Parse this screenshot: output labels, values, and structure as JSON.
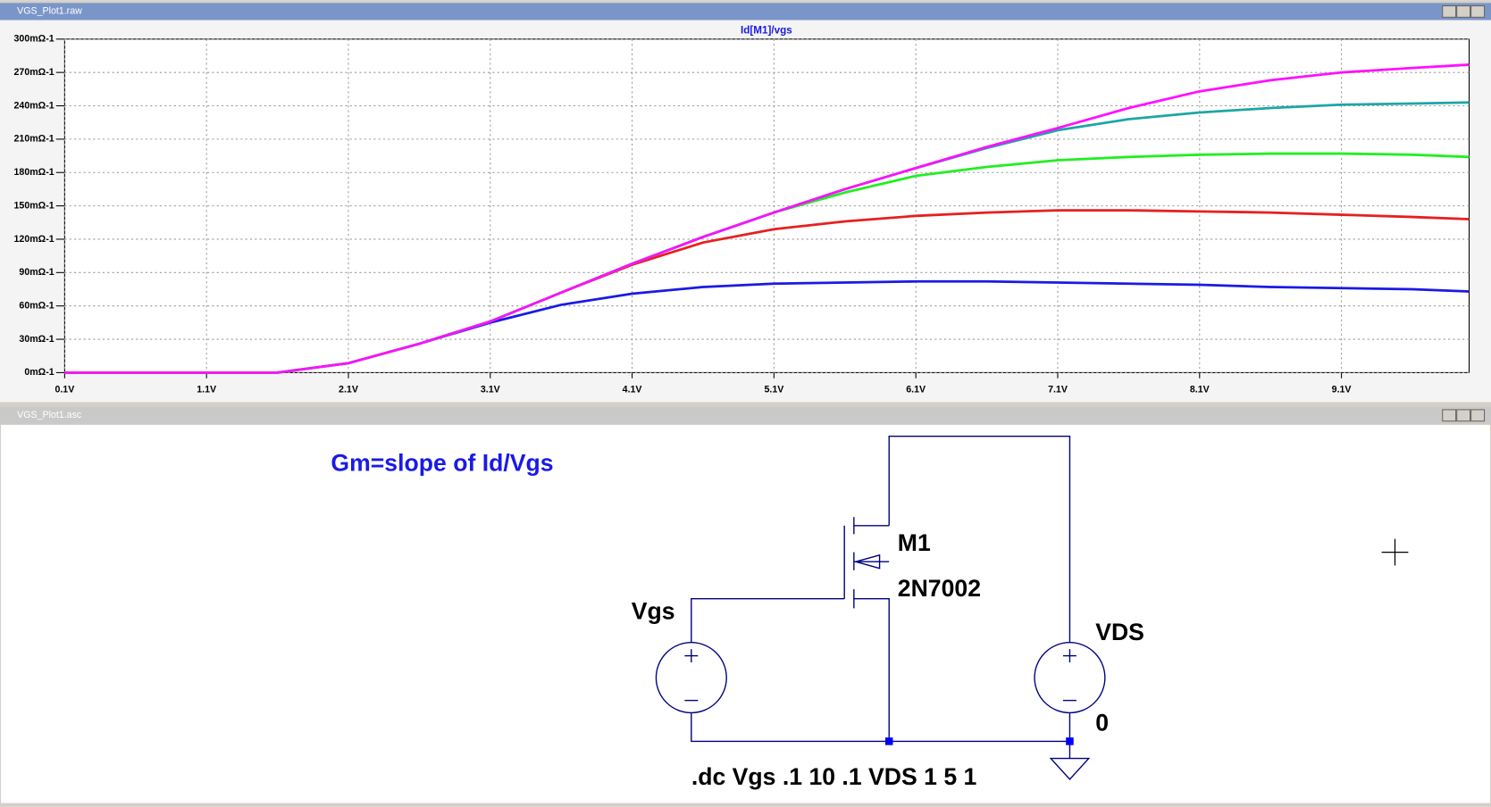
{
  "plot_window": {
    "title": "VGS_Plot1.raw"
  },
  "chart_data": {
    "type": "line",
    "title": "Id[M1]/vgs",
    "x": [
      0.1,
      0.6,
      1.1,
      1.6,
      2.1,
      2.6,
      3.1,
      3.6,
      4.1,
      4.6,
      5.1,
      5.6,
      6.1,
      6.6,
      7.1,
      7.6,
      8.1,
      8.6,
      9.1,
      9.6,
      10
    ],
    "xlim": [
      0.1,
      10
    ],
    "xticks": [
      {
        "value": 0.1,
        "label": "0.1V"
      },
      {
        "value": 1.1,
        "label": "1.1V"
      },
      {
        "value": 2.1,
        "label": "2.1V"
      },
      {
        "value": 3.1,
        "label": "3.1V"
      },
      {
        "value": 4.1,
        "label": "4.1V"
      },
      {
        "value": 5.1,
        "label": "5.1V"
      },
      {
        "value": 6.1,
        "label": "6.1V"
      },
      {
        "value": 7.1,
        "label": "7.1V"
      },
      {
        "value": 8.1,
        "label": "8.1V"
      },
      {
        "value": 9.1,
        "label": "9.1V"
      }
    ],
    "ylim": [
      0,
      300
    ],
    "yticks": [
      {
        "value": 0,
        "label": "0mΩ-1"
      },
      {
        "value": 30,
        "label": "30mΩ-1"
      },
      {
        "value": 60,
        "label": "60mΩ-1"
      },
      {
        "value": 90,
        "label": "90mΩ-1"
      },
      {
        "value": 120,
        "label": "120mΩ-1"
      },
      {
        "value": 150,
        "label": "150mΩ-1"
      },
      {
        "value": 180,
        "label": "180mΩ-1"
      },
      {
        "value": 210,
        "label": "210mΩ-1"
      },
      {
        "value": 240,
        "label": "240mΩ-1"
      },
      {
        "value": 270,
        "label": "270mΩ-1"
      },
      {
        "value": 300,
        "label": "300mΩ-1"
      }
    ],
    "grid": true,
    "series": [
      {
        "color": "#1a1ae6",
        "values": [
          0,
          0,
          0,
          0,
          8.5,
          26,
          45,
          61,
          71,
          77,
          80,
          81,
          82,
          82,
          81,
          80,
          79,
          77,
          76,
          75,
          73
        ]
      },
      {
        "color": "#e62020",
        "values": [
          0,
          0,
          0,
          0,
          8.5,
          26,
          46,
          72,
          97,
          117,
          129,
          136,
          141,
          144,
          146,
          146,
          145,
          144,
          142,
          140,
          138
        ]
      },
      {
        "color": "#22ee22",
        "values": [
          0,
          0,
          0,
          0,
          8.5,
          26,
          46,
          72,
          98,
          122,
          144,
          162,
          177,
          185,
          191,
          194,
          196,
          197,
          197,
          196,
          194
        ]
      },
      {
        "color": "#1fa5a5",
        "values": [
          0,
          0,
          0,
          0,
          8.5,
          26,
          46,
          72,
          98,
          122,
          144,
          165,
          184,
          202,
          218,
          228,
          234,
          238,
          241,
          242,
          243
        ]
      },
      {
        "color": "#ff10ff",
        "values": [
          0,
          0,
          0,
          0,
          8.5,
          26,
          46,
          72,
          98,
          122,
          144,
          165,
          184,
          203,
          220,
          238,
          253,
          263,
          270,
          274,
          277
        ]
      }
    ]
  },
  "schematic_window": {
    "title": "VGS_Plot1.asc"
  },
  "schematic": {
    "annotation": "Gm=slope of Id/Vgs",
    "mosfet_name": "M1",
    "mosfet_model": "2N7002",
    "source1": "Vgs",
    "source2": "VDS",
    "ground_label": "0",
    "directive": ".dc Vgs .1 10 .1 VDS 1 5 1"
  }
}
